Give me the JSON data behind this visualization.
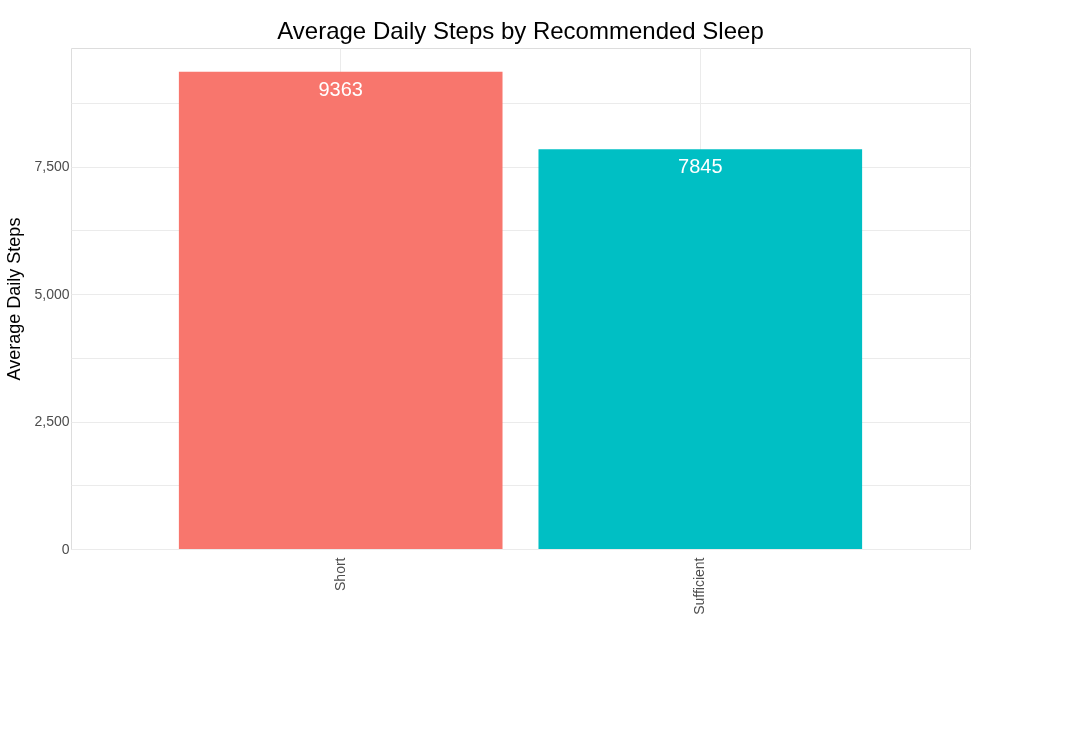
{
  "chart_data": {
    "type": "bar",
    "title": "Average Daily Steps by Recommended Sleep",
    "ylabel": "Average Daily Steps",
    "categories": [
      "Short",
      "Sufficient"
    ],
    "values": [
      9363,
      7845
    ],
    "colors": [
      "#f8766d",
      "#00bfc4"
    ],
    "ylim": [
      0,
      9831
    ],
    "yticks": [
      {
        "value": 0,
        "label": "0"
      },
      {
        "value": 1250,
        "label": null
      },
      {
        "value": 2500,
        "label": "2,500"
      },
      {
        "value": 3750,
        "label": null
      },
      {
        "value": 5000,
        "label": "5,000"
      },
      {
        "value": 6250,
        "label": null
      },
      {
        "value": 7500,
        "label": "7,500"
      },
      {
        "value": 8750,
        "label": null
      }
    ],
    "grid": true,
    "legend": false,
    "data_labels": true
  }
}
